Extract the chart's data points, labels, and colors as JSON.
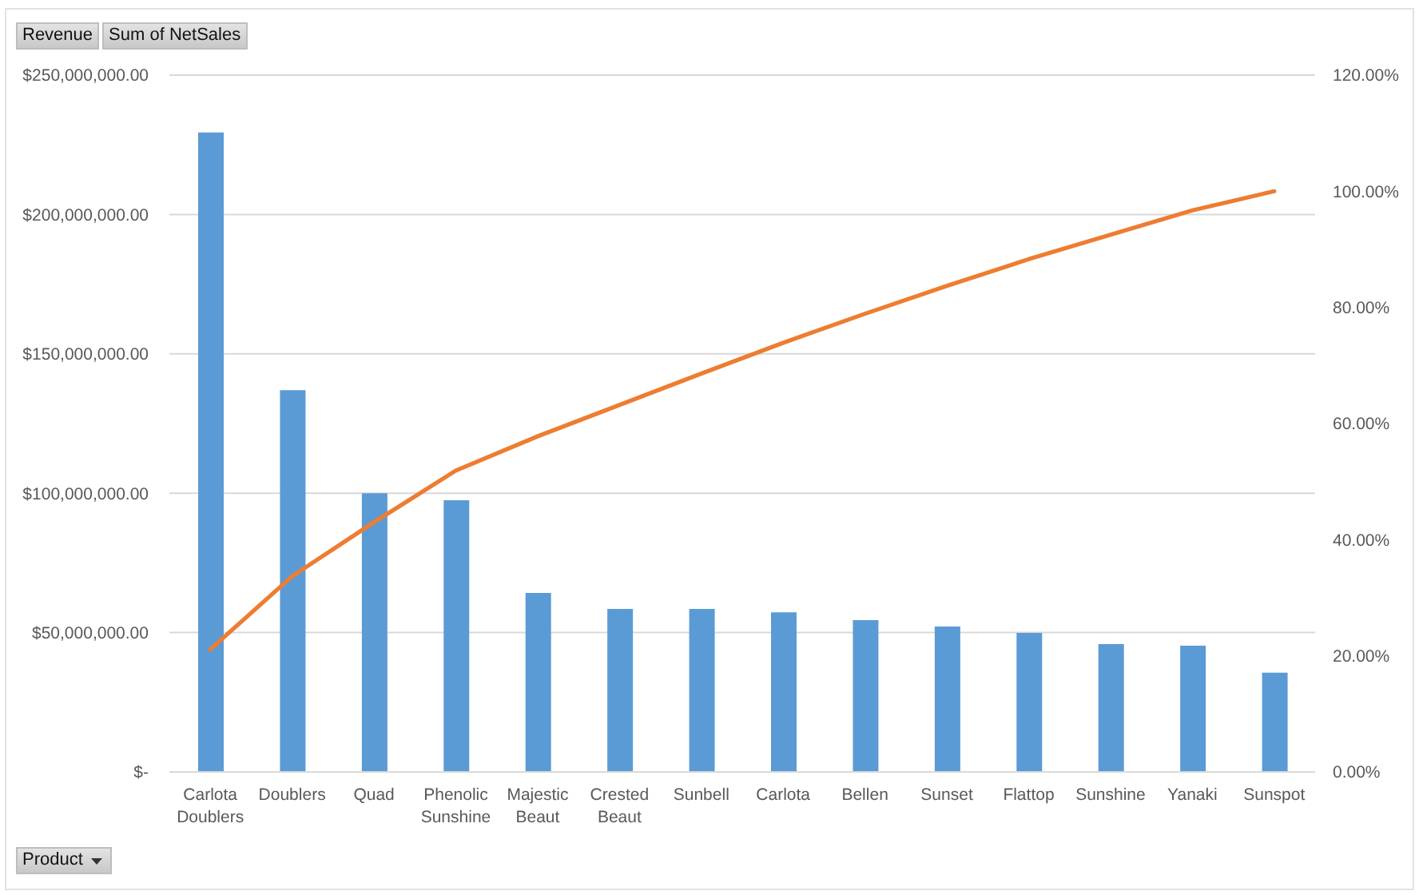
{
  "chart_data": {
    "type": "bar",
    "annotations": [
      "Revenue",
      "Sum of NetSales"
    ],
    "xlabel": "Product",
    "categories": [
      "Carlota Doublers",
      "Doublers",
      "Quad",
      "Phenolic Sunshine",
      "Majestic Beaut",
      "Crested Beaut",
      "Sunbell",
      "Carlota",
      "Bellen",
      "Sunset",
      "Flattop",
      "Sunshine",
      "Yanaki",
      "Sunspot"
    ],
    "series": [
      {
        "color": "#5b9bd5",
        "values": [
          229400000,
          137000000,
          100000000,
          97500000,
          64200000,
          58500000,
          58500000,
          57300000,
          54500000,
          52200000,
          49900000,
          45900000,
          45300000,
          35600000
        ]
      },
      {
        "type": "line",
        "axis": "y2",
        "color": "#ed7d31",
        "values": [
          21.1,
          33.7,
          43.0,
          51.9,
          57.8,
          63.2,
          68.6,
          73.9,
          78.9,
          83.7,
          88.3,
          92.5,
          96.7,
          100
        ]
      }
    ],
    "ylim": [
      0,
      250000000
    ],
    "yticks": [
      {
        "value": 0,
        "label": "$-"
      },
      {
        "value": 50000000,
        "label": "$50,000,000.00"
      },
      {
        "value": 100000000,
        "label": "$100,000,000.00"
      },
      {
        "value": 150000000,
        "label": "$150,000,000.00"
      },
      {
        "value": 200000000,
        "label": "$200,000,000.00"
      },
      {
        "value": 250000000,
        "label": "$250,000,000.00"
      }
    ],
    "y2lim": [
      0,
      120
    ],
    "y2ticks": [
      {
        "value": 0,
        "label": "0.00%"
      },
      {
        "value": 20,
        "label": "20.00%"
      },
      {
        "value": 40,
        "label": "40.00%"
      },
      {
        "value": 60,
        "label": "60.00%"
      },
      {
        "value": 80,
        "label": "80.00%"
      },
      {
        "value": 100,
        "label": "100.00%"
      },
      {
        "value": 120,
        "label": "120.00%"
      }
    ],
    "grid": "y",
    "marker": "none",
    "line_style": "solid"
  }
}
